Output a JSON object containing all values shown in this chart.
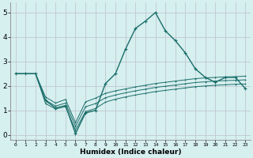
{
  "xlabel": "Humidex (Indice chaleur)",
  "background_color": "#d6efef",
  "grid_color": "#c0c8d0",
  "line_color": "#1a6e6a",
  "x_values": [
    0,
    1,
    2,
    3,
    4,
    5,
    6,
    7,
    8,
    9,
    10,
    11,
    12,
    13,
    14,
    15,
    16,
    17,
    18,
    19,
    20,
    21,
    22,
    23
  ],
  "series_main": [
    2.5,
    2.5,
    2.5,
    1.4,
    1.1,
    1.2,
    0.05,
    0.9,
    1.0,
    2.1,
    2.5,
    3.5,
    4.35,
    4.65,
    5.0,
    4.25,
    3.85,
    3.35,
    2.7,
    2.35,
    2.15,
    2.35,
    2.35,
    1.9
  ],
  "series_band1": [
    2.5,
    2.5,
    2.5,
    1.55,
    1.3,
    1.45,
    0.5,
    1.35,
    1.5,
    1.7,
    1.8,
    1.88,
    1.96,
    2.03,
    2.1,
    2.15,
    2.2,
    2.25,
    2.3,
    2.33,
    2.35,
    2.37,
    2.38,
    2.4
  ],
  "series_band2": [
    2.5,
    2.5,
    2.5,
    1.42,
    1.18,
    1.3,
    0.35,
    1.15,
    1.28,
    1.52,
    1.63,
    1.72,
    1.8,
    1.87,
    1.94,
    1.99,
    2.04,
    2.09,
    2.14,
    2.17,
    2.2,
    2.22,
    2.23,
    2.25
  ],
  "series_band3": [
    2.5,
    2.5,
    2.5,
    1.28,
    1.06,
    1.15,
    0.2,
    0.95,
    1.08,
    1.34,
    1.46,
    1.55,
    1.63,
    1.7,
    1.77,
    1.82,
    1.87,
    1.92,
    1.97,
    2.0,
    2.03,
    2.05,
    2.07,
    2.08
  ],
  "ylim": [
    -0.2,
    5.4
  ],
  "xlim": [
    -0.5,
    23.5
  ],
  "yticks": [
    0,
    1,
    2,
    3,
    4,
    5
  ],
  "xtick_labels": [
    "0",
    "1",
    "2",
    "3",
    "4",
    "5",
    "6",
    "7",
    "8",
    "9",
    "10",
    "11",
    "12",
    "13",
    "14",
    "15",
    "16",
    "17",
    "18",
    "19",
    "20",
    "21",
    "22",
    "23"
  ]
}
